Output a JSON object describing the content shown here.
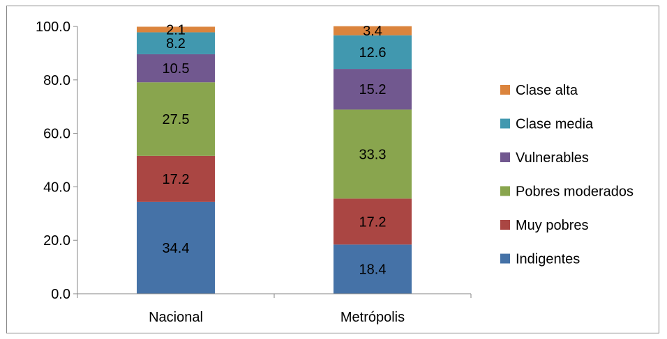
{
  "chart_data": {
    "type": "bar",
    "stacked": true,
    "categories": [
      "Nacional",
      "Metrópolis"
    ],
    "series": [
      {
        "name": "Indigentes",
        "color": "#4572A7",
        "values": [
          34.4,
          18.4
        ]
      },
      {
        "name": "Muy pobres",
        "color": "#AA4643",
        "values": [
          17.2,
          17.2
        ]
      },
      {
        "name": "Pobres moderados",
        "color": "#89A54E",
        "values": [
          27.5,
          33.3
        ]
      },
      {
        "name": "Vulnerables",
        "color": "#71588F",
        "values": [
          10.5,
          15.2
        ]
      },
      {
        "name": "Clase media",
        "color": "#4198AF",
        "values": [
          8.2,
          12.6
        ]
      },
      {
        "name": "Clase alta",
        "color": "#DB843D",
        "values": [
          2.1,
          3.4
        ]
      }
    ],
    "ylim": [
      0,
      100
    ],
    "yticks": [
      "0.0",
      "20.0",
      "40.0",
      "60.0",
      "80.0",
      "100.0"
    ],
    "legend_position": "right",
    "grid": false
  }
}
